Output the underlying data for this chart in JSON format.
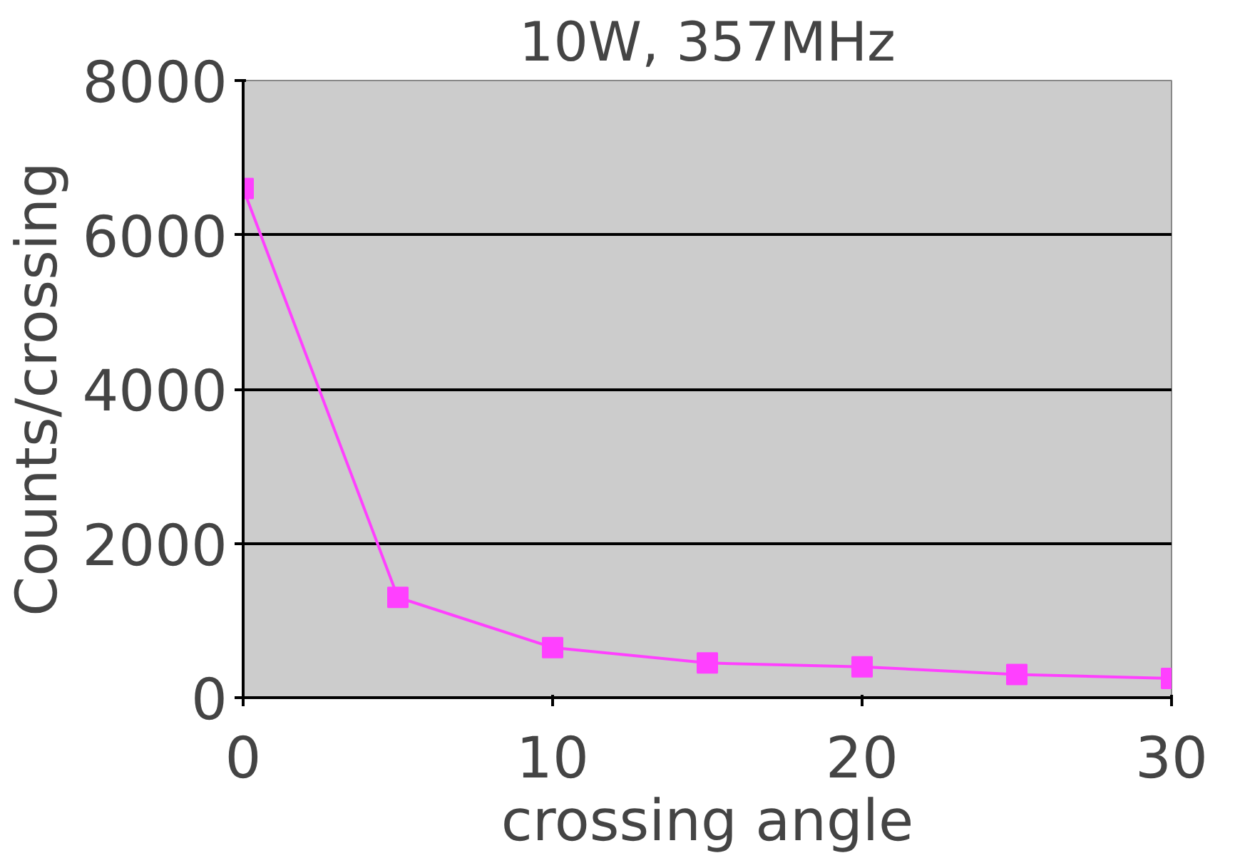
{
  "chart_data": {
    "type": "line",
    "title": "10W, 357MHz",
    "xlabel": "crossing angle",
    "ylabel": "Counts/crossing",
    "x": [
      0,
      5,
      10,
      15,
      20,
      25,
      30
    ],
    "series": [
      {
        "color": "#ff40ff",
        "values": [
          6600,
          1300,
          650,
          450,
          400,
          300,
          250
        ]
      }
    ],
    "xlim": [
      0,
      30
    ],
    "xticks": [
      0,
      10,
      20,
      30
    ],
    "ylim": [
      0,
      8000
    ],
    "yticks": [
      0,
      2000,
      4000,
      6000,
      8000
    ],
    "grid": "y",
    "marker": "square",
    "line_style": "solid"
  }
}
